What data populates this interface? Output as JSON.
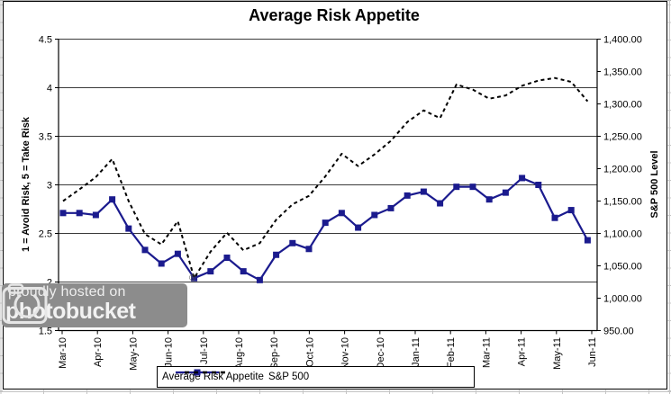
{
  "watermark": {
    "line1": "proudly hosted on",
    "line2": "photobucket",
    "registered": "®"
  },
  "chart_data": {
    "type": "line",
    "title": "Average Risk Appetite",
    "x_axis": {
      "tick_labels": [
        "Mar-10",
        "Apr-10",
        "May-10",
        "Jun-10",
        "Jul-10",
        "Aug-10",
        "Sep-10",
        "Oct-10",
        "Nov-10",
        "Dec-10",
        "Jan-11",
        "Feb-11",
        "Mar-11",
        "Apr-11",
        "May-11",
        "Jun-11"
      ]
    },
    "y_left": {
      "title": "1 = Avoid Risk, 5 = Take Risk",
      "min": 1.5,
      "max": 4.5,
      "step": 0.5,
      "tick_labels": [
        "4.5",
        "4",
        "3.5",
        "3",
        "2.5",
        "2",
        "1.5"
      ]
    },
    "y_right": {
      "title": "S&P 500 Level",
      "min": 950,
      "max": 1400,
      "step": 50,
      "tick_labels": [
        "1,400.00",
        "1,350.00",
        "1,300.00",
        "1,250.00",
        "1,200.00",
        "1,150.00",
        "1,100.00",
        "1,050.00",
        "1,000.00",
        "950.00"
      ]
    },
    "legend": {
      "position": "bottom"
    },
    "grid": true,
    "series": [
      {
        "name": "Average Risk Appetite",
        "axis": "left",
        "style": "solid",
        "marker": "square",
        "color": "#1b1b8e",
        "values": [
          2.71,
          2.71,
          2.69,
          2.85,
          2.55,
          2.33,
          2.19,
          2.29,
          2.04,
          2.11,
          2.25,
          2.11,
          2.02,
          2.28,
          2.4,
          2.34,
          2.61,
          2.71,
          2.56,
          2.69,
          2.76,
          2.89,
          2.93,
          2.81,
          2.98,
          2.98,
          2.85,
          2.92,
          3.07,
          3.0,
          2.66,
          2.74,
          2.43
        ]
      },
      {
        "name": "S&P 500",
        "axis": "right",
        "style": "dashed",
        "marker": "none",
        "color": "#000000",
        "values": [
          1150,
          1168,
          1187,
          1215,
          1150,
          1099,
          1083,
          1119,
          1031,
          1072,
          1101,
          1074,
          1085,
          1121,
          1145,
          1158,
          1188,
          1223,
          1204,
          1222,
          1243,
          1272,
          1290,
          1278,
          1330,
          1322,
          1308,
          1313,
          1328,
          1336,
          1340,
          1334,
          1304
        ]
      }
    ]
  }
}
